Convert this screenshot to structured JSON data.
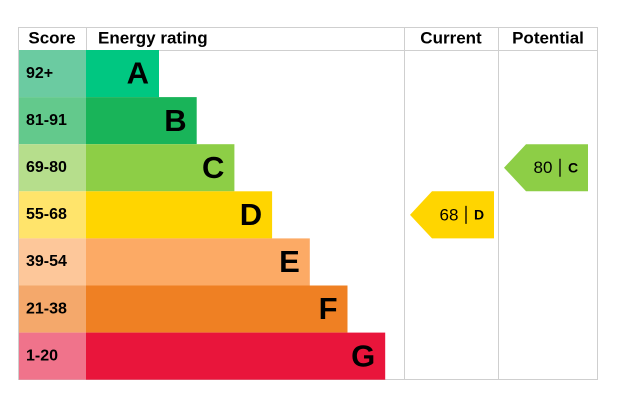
{
  "header": {
    "score": "Score",
    "rating": "Energy rating",
    "current": "Current",
    "potential": "Potential"
  },
  "bands": [
    {
      "score": "92+",
      "letter": "A",
      "color": "#00c781",
      "score_color": "#6bcba1"
    },
    {
      "score": "81-91",
      "letter": "B",
      "color": "#19b459",
      "score_color": "#63c98c"
    },
    {
      "score": "69-80",
      "letter": "C",
      "color": "#8dce46",
      "score_color": "#b6de8c"
    },
    {
      "score": "55-68",
      "letter": "D",
      "color": "#ffd500",
      "score_color": "#ffe46b"
    },
    {
      "score": "39-54",
      "letter": "E",
      "color": "#fcaa65",
      "score_color": "#fdc79a"
    },
    {
      "score": "21-38",
      "letter": "F",
      "color": "#ef8023",
      "score_color": "#f4a86b"
    },
    {
      "score": "1-20",
      "letter": "G",
      "color": "#e9153b",
      "score_color": "#f0738b"
    }
  ],
  "current": {
    "value": 68,
    "letter": "D"
  },
  "potential": {
    "value": 80,
    "letter": "C"
  }
}
